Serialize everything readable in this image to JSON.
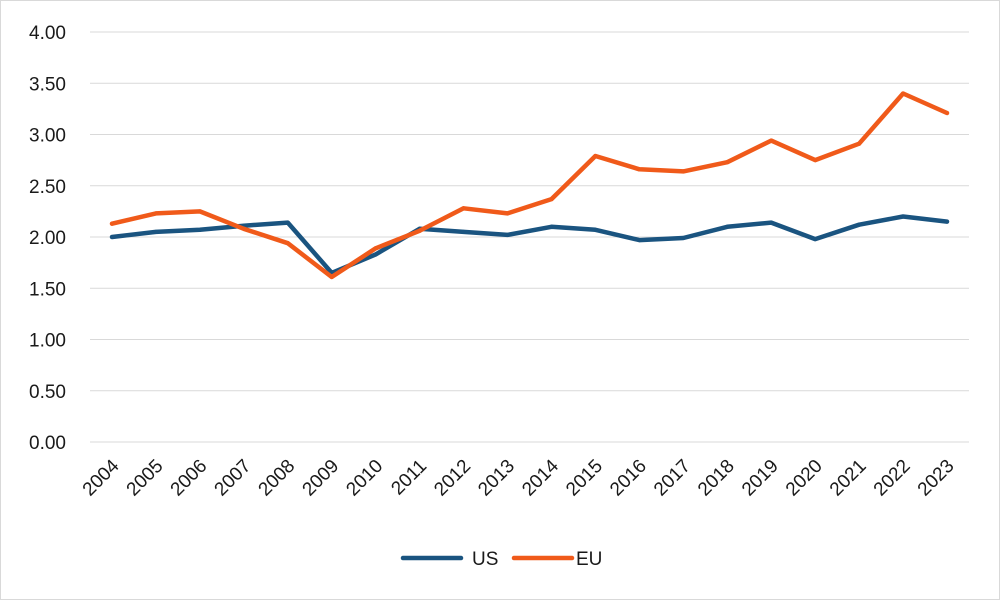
{
  "chart_data": {
    "type": "line",
    "title": "",
    "xlabel": "",
    "ylabel": "",
    "categories": [
      "2004",
      "2005",
      "2006",
      "2007",
      "2008",
      "2009",
      "2010",
      "2011",
      "2012",
      "2013",
      "2014",
      "2015",
      "2016",
      "2017",
      "2018",
      "2019",
      "2020",
      "2021",
      "2022",
      "2023"
    ],
    "y_ticks": [
      "0.00",
      "0.50",
      "1.00",
      "1.50",
      "2.00",
      "2.50",
      "3.00",
      "3.50",
      "4.00"
    ],
    "ylim": [
      0,
      4
    ],
    "grid": "horizontal",
    "legend_position": "bottom",
    "series": [
      {
        "name": "US",
        "color": "#1a5480",
        "values": [
          2.0,
          2.05,
          2.07,
          2.11,
          2.14,
          1.65,
          1.83,
          2.08,
          2.05,
          2.02,
          2.1,
          2.07,
          1.97,
          1.99,
          2.1,
          2.14,
          1.98,
          2.12,
          2.2,
          2.15
        ]
      },
      {
        "name": "EU",
        "color": "#f05a1a",
        "values": [
          2.13,
          2.23,
          2.25,
          2.08,
          1.94,
          1.61,
          1.89,
          2.06,
          2.28,
          2.23,
          2.37,
          2.79,
          2.66,
          2.64,
          2.73,
          2.94,
          2.75,
          2.91,
          3.4,
          3.21
        ]
      }
    ]
  }
}
